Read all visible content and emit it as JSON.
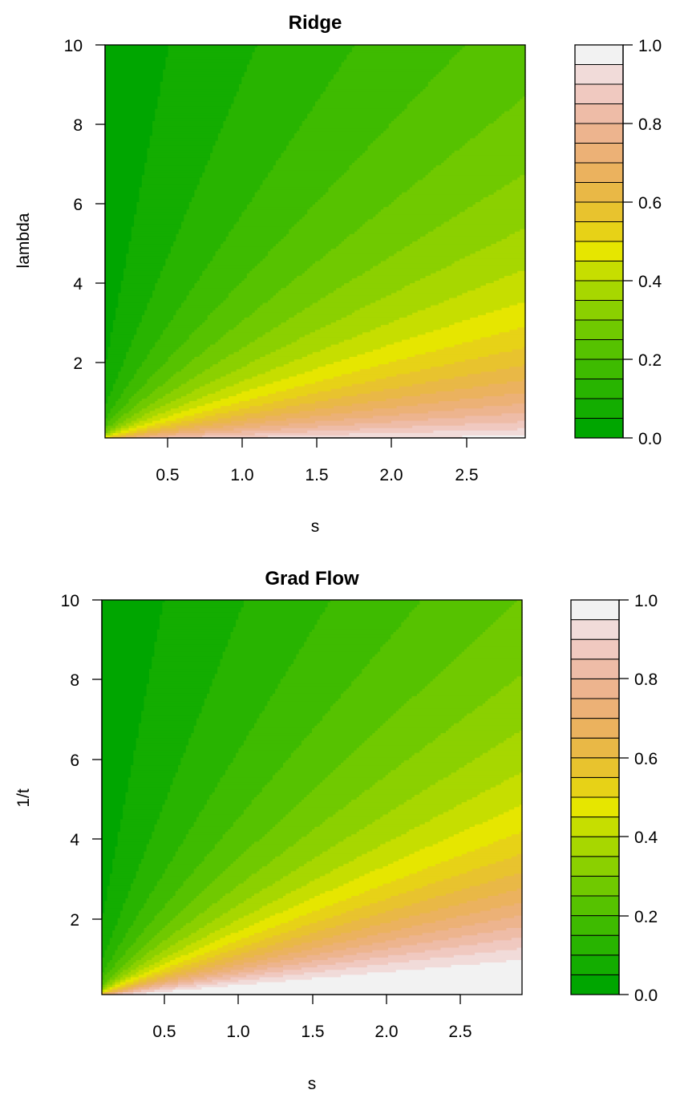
{
  "chart_data": [
    {
      "type": "heatmap",
      "subtype": "filled-contour",
      "title": "Ridge",
      "xlabel": "s",
      "ylabel": "lambda",
      "xlim": [
        0.1,
        2.9
      ],
      "ylim": [
        0.1,
        10
      ],
      "x_ticks": [
        "0.5",
        "1.0",
        "1.5",
        "2.0",
        "2.5"
      ],
      "y_ticks": [
        "2",
        "4",
        "6",
        "8",
        "10"
      ],
      "z_range": [
        0,
        1
      ],
      "levels": 20,
      "color_key_ticks": [
        "0.0",
        "0.2",
        "0.4",
        "0.6",
        "0.8",
        "1.0"
      ],
      "palette": "terrain.colors",
      "function": "ridge"
    },
    {
      "type": "heatmap",
      "subtype": "filled-contour",
      "title": "Grad Flow",
      "xlabel": "s",
      "ylabel": "1/t",
      "xlim": [
        0.1,
        2.9
      ],
      "ylim": [
        0.1,
        10
      ],
      "x_ticks": [
        "0.5",
        "1.0",
        "1.5",
        "2.0",
        "2.5"
      ],
      "y_ticks": [
        "2",
        "4",
        "6",
        "8",
        "10"
      ],
      "z_range": [
        0,
        1
      ],
      "levels": 20,
      "color_key_ticks": [
        "0.0",
        "0.2",
        "0.4",
        "0.6",
        "0.8",
        "1.0"
      ],
      "palette": "terrain.colors",
      "function": "gradflow"
    }
  ]
}
